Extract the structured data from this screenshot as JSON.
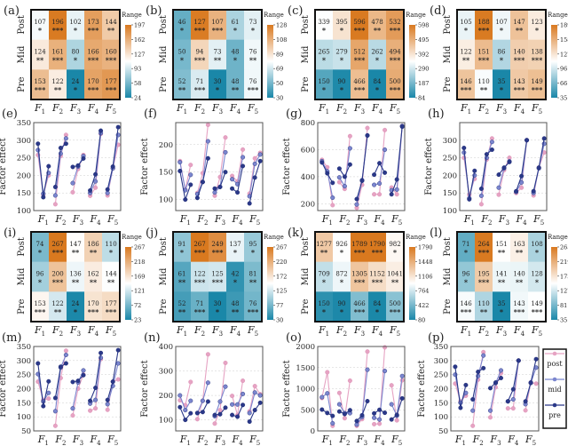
{
  "factor_labels": [
    "F1",
    "F2",
    "F3",
    "F4",
    "F5"
  ],
  "row_labels": [
    "Post",
    "Mid",
    "Pre"
  ],
  "colorbar_label": "Range",
  "ylabel": "Factor effect",
  "colors": {
    "low": "#1a87a8",
    "mid": "#ffffff",
    "high": "#d9791f",
    "post": "#e6a3c3",
    "mid_series": "#7b86cf",
    "pre": "#2a3888"
  },
  "legend": [
    "post",
    "mid",
    "pre"
  ],
  "chart_data": [
    {
      "panel": "(a)",
      "type": "heatmap",
      "range": [
        24,
        197
      ],
      "ticks": [
        197,
        162,
        127,
        93,
        58,
        24
      ],
      "values": [
        [
          107,
          196,
          102,
          173,
          144
        ],
        [
          124,
          161,
          80,
          166,
          160
        ],
        [
          153,
          122,
          24,
          170,
          177
        ]
      ],
      "stars": [
        [
          "*",
          "***",
          "*",
          "***",
          "**"
        ],
        [
          "**",
          "***",
          "*",
          "***",
          "***"
        ],
        [
          "***",
          "**",
          "*",
          "***",
          "***"
        ]
      ]
    },
    {
      "panel": "(b)",
      "type": "heatmap",
      "range": [
        30,
        128
      ],
      "ticks": [
        128,
        108,
        89,
        69,
        50,
        30
      ],
      "values": [
        [
          46,
          127,
          107,
          61,
          73
        ],
        [
          50,
          94,
          73,
          48,
          76
        ],
        [
          52,
          71,
          30,
          48,
          76
        ]
      ],
      "stars": [
        [
          "*",
          "***",
          "***",
          "*",
          "*"
        ],
        [
          "*",
          "***",
          "**",
          "*",
          "**"
        ],
        [
          "**",
          "***",
          "*",
          "**",
          "***"
        ]
      ]
    },
    {
      "panel": "(c)",
      "type": "heatmap",
      "range": [
        84,
        598
      ],
      "ticks": [
        598,
        495,
        392,
        290,
        187,
        84
      ],
      "values": [
        [
          339,
          395,
          596,
          478,
          532
        ],
        [
          265,
          279,
          512,
          262,
          494
        ],
        [
          150,
          90,
          466,
          84,
          500
        ]
      ],
      "stars": [
        [
          "*",
          "*",
          "***",
          "**",
          "***"
        ],
        [
          "*",
          "*",
          "***",
          "*",
          "***"
        ],
        [
          "*",
          "*",
          "***",
          "*",
          "***"
        ]
      ]
    },
    {
      "panel": "(d)",
      "type": "heatmap",
      "range": [
        35,
        189
      ],
      "ticks": [
        189,
        158,
        127,
        96,
        66,
        35
      ],
      "values": [
        [
          105,
          188,
          107,
          147,
          123
        ],
        [
          122,
          151,
          86,
          140,
          138
        ],
        [
          146,
          110,
          35,
          143,
          149
        ]
      ],
      "stars": [
        [
          "*",
          "***",
          "*",
          "**",
          "*"
        ],
        [
          "**",
          "***",
          "*",
          "***",
          "***"
        ],
        [
          "***",
          "**",
          "*",
          "***",
          "***"
        ]
      ]
    },
    {
      "panel": "(e)",
      "type": "line",
      "ylim": [
        100,
        350
      ],
      "yticks": [
        100,
        150,
        200,
        250,
        300,
        350
      ],
      "series": [
        {
          "name": "post",
          "values": [
            258,
            145,
            200,
            118,
            255,
            315,
            152,
            218,
            258,
            142,
            165,
            318,
            143,
            220,
            287
          ]
        },
        {
          "name": "mid",
          "values": [
            272,
            148,
            207,
            143,
            262,
            305,
            178,
            225,
            255,
            150,
            183,
            320,
            150,
            220,
            315
          ]
        },
        {
          "name": "pre",
          "values": [
            290,
            138,
            226,
            167,
            278,
            290,
            224,
            228,
            248,
            157,
            203,
            327,
            160,
            225,
            337
          ]
        }
      ]
    },
    {
      "panel": "(f)",
      "type": "line",
      "ylim": [
        80,
        240
      ],
      "yticks": [
        100,
        150,
        200
      ],
      "series": [
        {
          "name": "post",
          "values": [
            170,
            118,
            163,
            112,
            148,
            236,
            107,
            141,
            213,
            143,
            133,
            191,
            111,
            175,
            185
          ]
        },
        {
          "name": "mid",
          "values": [
            168,
            117,
            145,
            110,
            132,
            206,
            113,
            123,
            186,
            137,
            128,
            177,
            106,
            165,
            182
          ]
        },
        {
          "name": "pre",
          "values": [
            152,
            100,
            127,
            103,
            132,
            175,
            120,
            123,
            150,
            120,
            113,
            161,
            93,
            140,
            170
          ]
        }
      ]
    },
    {
      "panel": "(g)",
      "type": "line",
      "ylim": [
        150,
        800
      ],
      "yticks": [
        200,
        400,
        600,
        800
      ],
      "series": [
        {
          "name": "post",
          "values": [
            525,
            470,
            190,
            360,
            310,
            700,
            170,
            340,
            760,
            270,
            270,
            745,
            320,
            270,
            775
          ]
        },
        {
          "name": "mid",
          "values": [
            515,
            440,
            245,
            395,
            330,
            610,
            195,
            375,
            705,
            340,
            350,
            600,
            300,
            305,
            775
          ]
        },
        {
          "name": "pre",
          "values": [
            505,
            425,
            355,
            460,
            400,
            490,
            235,
            370,
            705,
            415,
            500,
            430,
            270,
            380,
            770
          ]
        }
      ]
    },
    {
      "panel": "(h)",
      "type": "line",
      "ylim": [
        100,
        350
      ],
      "yticks": [
        100,
        150,
        200,
        250,
        300
      ],
      "series": [
        {
          "name": "post",
          "values": [
            250,
            145,
            190,
            118,
            245,
            305,
            145,
            215,
            250,
            150,
            165,
            300,
            143,
            222,
            265
          ]
        },
        {
          "name": "mid",
          "values": [
            265,
            135,
            200,
            142,
            250,
            295,
            165,
            220,
            240,
            153,
            180,
            300,
            150,
            220,
            290
          ]
        },
        {
          "name": "pre",
          "values": [
            278,
            132,
            213,
            162,
            260,
            273,
            202,
            222,
            238,
            155,
            198,
            300,
            155,
            222,
            305
          ]
        }
      ]
    },
    {
      "panel": "(i)",
      "type": "heatmap",
      "range": [
        23,
        267
      ],
      "ticks": [
        267,
        218,
        169,
        121,
        72,
        23
      ],
      "values": [
        [
          74,
          267,
          147,
          186,
          110
        ],
        [
          96,
          200,
          136,
          162,
          144
        ],
        [
          153,
          122,
          24,
          170,
          177
        ]
      ],
      "stars": [
        [
          "*",
          "***",
          "**",
          "**",
          "*"
        ],
        [
          "*",
          "***",
          "**",
          "**",
          "**"
        ],
        [
          "***",
          "**",
          "*",
          "***",
          "***"
        ]
      ]
    },
    {
      "panel": "(j)",
      "type": "heatmap",
      "range": [
        30,
        267
      ],
      "ticks": [
        267,
        220,
        172,
        125,
        77,
        30
      ],
      "values": [
        [
          91,
          267,
          249,
          137,
          95
        ],
        [
          61,
          122,
          125,
          42,
          81
        ],
        [
          52,
          71,
          30,
          48,
          76
        ]
      ],
      "stars": [
        [
          "*",
          "***",
          "***",
          "*",
          "*"
        ],
        [
          "**",
          "***",
          "***",
          "*",
          "**"
        ],
        [
          "**",
          "***",
          "*",
          "**",
          "***"
        ]
      ]
    },
    {
      "panel": "(k)",
      "type": "heatmap",
      "range": [
        80,
        1790
      ],
      "ticks": [
        1790,
        1448,
        1106,
        764,
        422,
        80
      ],
      "values": [
        [
          1277,
          926,
          1789,
          1790,
          982
        ],
        [
          709,
          872,
          1305,
          1152,
          1041
        ],
        [
          150,
          90,
          466,
          84,
          500
        ]
      ],
      "stars": [
        [
          "**",
          "*",
          "***",
          "***",
          "*"
        ],
        [
          "*",
          "*",
          "***",
          "***",
          "**"
        ],
        [
          "*",
          "*",
          "***",
          "*",
          "***"
        ]
      ]
    },
    {
      "panel": "(l)",
      "type": "heatmap",
      "range": [
        35,
        265
      ],
      "ticks": [
        265,
        219,
        173,
        127,
        81,
        35
      ],
      "values": [
        [
          71,
          264,
          151,
          163,
          108
        ],
        [
          96,
          195,
          141,
          140,
          128
        ],
        [
          146,
          110,
          35,
          143,
          149
        ]
      ],
      "stars": [
        [
          "*",
          "***",
          "**",
          "**",
          "*"
        ],
        [
          "*",
          "***",
          "**",
          "**",
          "*"
        ],
        [
          "***",
          "**",
          "*",
          "***",
          "***"
        ]
      ]
    },
    {
      "panel": "(m)",
      "type": "line",
      "ylim": [
        50,
        350
      ],
      "yticks": [
        50,
        100,
        150,
        200,
        250,
        300,
        350
      ],
      "series": [
        {
          "name": "post",
          "values": [
            225,
            160,
            165,
            68,
            238,
            335,
            105,
            200,
            250,
            122,
            130,
            305,
            125,
            225,
            233
          ]
        },
        {
          "name": "mid",
          "values": [
            252,
            155,
            185,
            120,
            275,
            320,
            130,
            222,
            265,
            147,
            160,
            310,
            145,
            210,
            290
          ]
        },
        {
          "name": "pre",
          "values": [
            290,
            138,
            226,
            167,
            278,
            290,
            224,
            228,
            248,
            157,
            203,
            327,
            160,
            225,
            337
          ]
        }
      ]
    },
    {
      "panel": "(n)",
      "type": "line",
      "ylim": [
        55,
        400
      ],
      "yticks": [
        100,
        200,
        300,
        400
      ],
      "series": [
        {
          "name": "post",
          "values": [
            180,
            160,
            255,
            103,
            178,
            368,
            85,
            140,
            333,
            198,
            120,
            260,
            135,
            238,
            205
          ]
        },
        {
          "name": "mid",
          "values": [
            200,
            140,
            178,
            128,
            178,
            252,
            115,
            175,
            236,
            163,
            163,
            206,
            128,
            212,
            200
          ]
        },
        {
          "name": "pre",
          "values": [
            152,
            100,
            127,
            128,
            132,
            175,
            120,
            123,
            150,
            120,
            113,
            161,
            93,
            140,
            170
          ]
        }
      ]
    },
    {
      "panel": "(o)",
      "type": "line",
      "ylim": [
        0,
        2000
      ],
      "yticks": [
        0,
        500,
        1000,
        1500,
        2000
      ],
      "series": [
        {
          "name": "post",
          "values": [
            780,
            1390,
            120,
            900,
            300,
            1190,
            120,
            280,
            1880,
            160,
            170,
            1980,
            1080,
            250,
            1200
          ]
        },
        {
          "name": "mid",
          "values": [
            800,
            890,
            180,
            630,
            420,
            420,
            150,
            330,
            1450,
            310,
            270,
            1420,
            630,
            360,
            1300
          ]
        },
        {
          "name": "pre",
          "values": [
            505,
            425,
            355,
            460,
            400,
            490,
            235,
            370,
            705,
            415,
            500,
            430,
            270,
            380,
            770
          ]
        }
      ]
    },
    {
      "panel": "(p)",
      "type": "line",
      "ylim": [
        50,
        350
      ],
      "yticks": [
        50,
        100,
        150,
        200,
        250,
        300,
        350
      ],
      "series": [
        {
          "name": "post",
          "values": [
            218,
            155,
            175,
            68,
            232,
            330,
            98,
            205,
            255,
            130,
            130,
            300,
            123,
            222,
            218
          ]
        },
        {
          "name": "mid",
          "values": [
            250,
            150,
            185,
            122,
            245,
            318,
            122,
            220,
            265,
            155,
            162,
            300,
            145,
            220,
            275
          ]
        },
        {
          "name": "pre",
          "values": [
            278,
            132,
            213,
            162,
            260,
            273,
            202,
            222,
            238,
            155,
            198,
            300,
            155,
            222,
            305
          ]
        }
      ]
    }
  ]
}
